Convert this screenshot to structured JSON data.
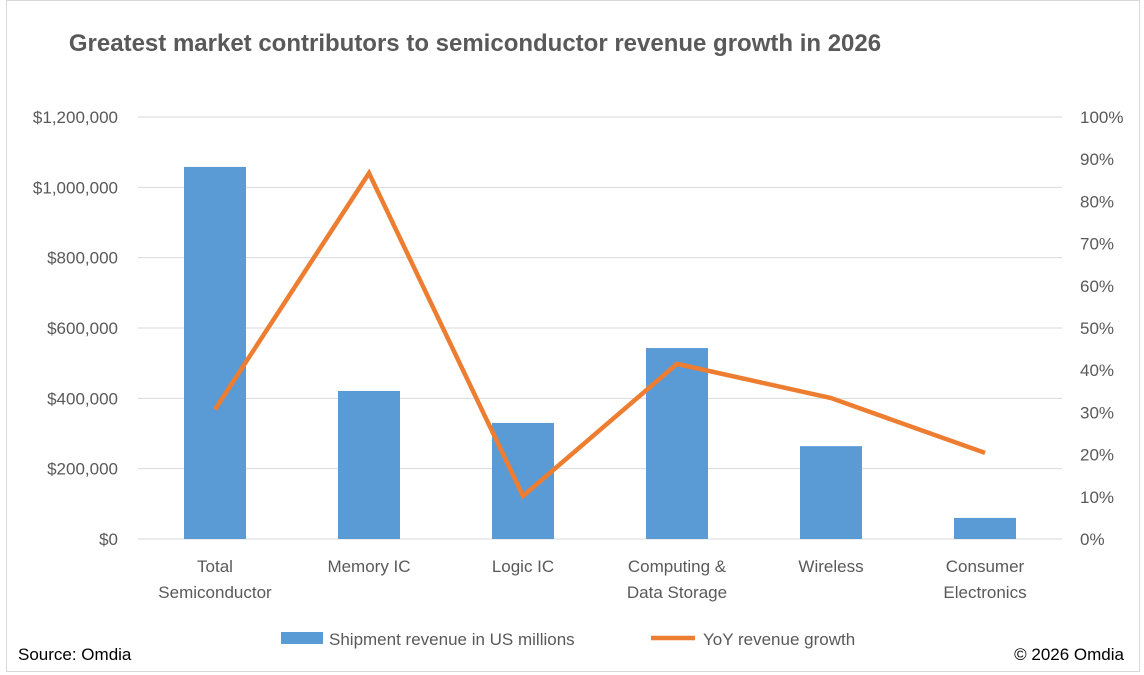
{
  "chart_data": {
    "type": "bar+line",
    "title": "Greatest market contributors to semiconductor revenue growth in 2026",
    "categories": [
      [
        "Total",
        "Semiconductor"
      ],
      [
        "Memory IC"
      ],
      [
        "Logic IC"
      ],
      [
        "Computing &",
        "Data Storage"
      ],
      [
        "Wireless"
      ],
      [
        "Consumer",
        "Electronics"
      ]
    ],
    "series": [
      {
        "name": "Shipment revenue in US millions",
        "type": "bar",
        "axis": "left",
        "color": "#5b9bd5",
        "values": [
          1058000,
          421000,
          330000,
          543000,
          264000,
          60000
        ]
      },
      {
        "name": "YoY revenue growth",
        "type": "line",
        "axis": "right",
        "color": "#ed7d31",
        "values": [
          30.7,
          86.7,
          10.2,
          41.5,
          33.4,
          20.4
        ]
      }
    ],
    "ylim_left": [
      0,
      1200000
    ],
    "ylim_right": [
      0,
      100
    ],
    "yticks_left": [
      "$0",
      "$200,000",
      "$400,000",
      "$600,000",
      "$800,000",
      "$1,000,000",
      "$1,200,000"
    ],
    "yticks_right": [
      "0%",
      "10%",
      "20%",
      "30%",
      "40%",
      "50%",
      "60%",
      "70%",
      "80%",
      "90%",
      "100%"
    ],
    "grid": true,
    "legend_position": "bottom"
  },
  "footer": {
    "source": "Source: Omdia",
    "copyright": "© 2026 Omdia"
  }
}
